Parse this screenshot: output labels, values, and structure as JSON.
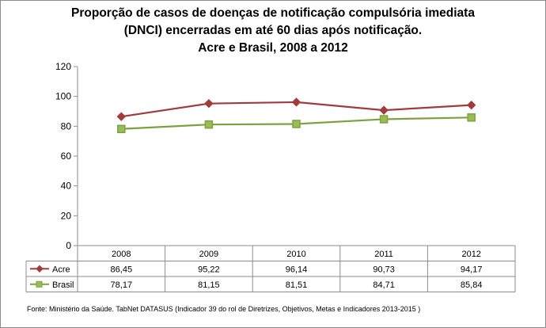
{
  "chart_data": {
    "type": "line",
    "title": [
      "Proporção de casos de doenças de notificação compulsória imediata",
      "(DNCI) encerradas em até 60 dias após notificação.",
      "Acre e Brasil, 2008 a 2012"
    ],
    "categories": [
      "2008",
      "2009",
      "2010",
      "2011",
      "2012"
    ],
    "ylim": [
      0,
      120
    ],
    "yticks": [
      "0",
      "20",
      "40",
      "60",
      "80",
      "100",
      "120"
    ],
    "grid": false,
    "series": [
      {
        "name": "Acre",
        "values": [
          86.45,
          95.22,
          96.14,
          90.73,
          94.17
        ],
        "labels": [
          "86,45",
          "95,22",
          "96,14",
          "90,73",
          "94,17"
        ],
        "color": "#a23b3b",
        "marker": "diamond"
      },
      {
        "name": "Brasil",
        "values": [
          78.17,
          81.15,
          81.51,
          84.71,
          85.84
        ],
        "labels": [
          "78,17",
          "81,15",
          "81,51",
          "84,71",
          "85,84"
        ],
        "color": "#7aa33e",
        "marker": "square"
      }
    ],
    "data_table": true
  },
  "source": "Fonte: Ministério da Saúde. TabNet DATASUS (Indicador 39 do rol de Diretrizes, Objetivos, Metas e Indicadores 2013-2015 )"
}
